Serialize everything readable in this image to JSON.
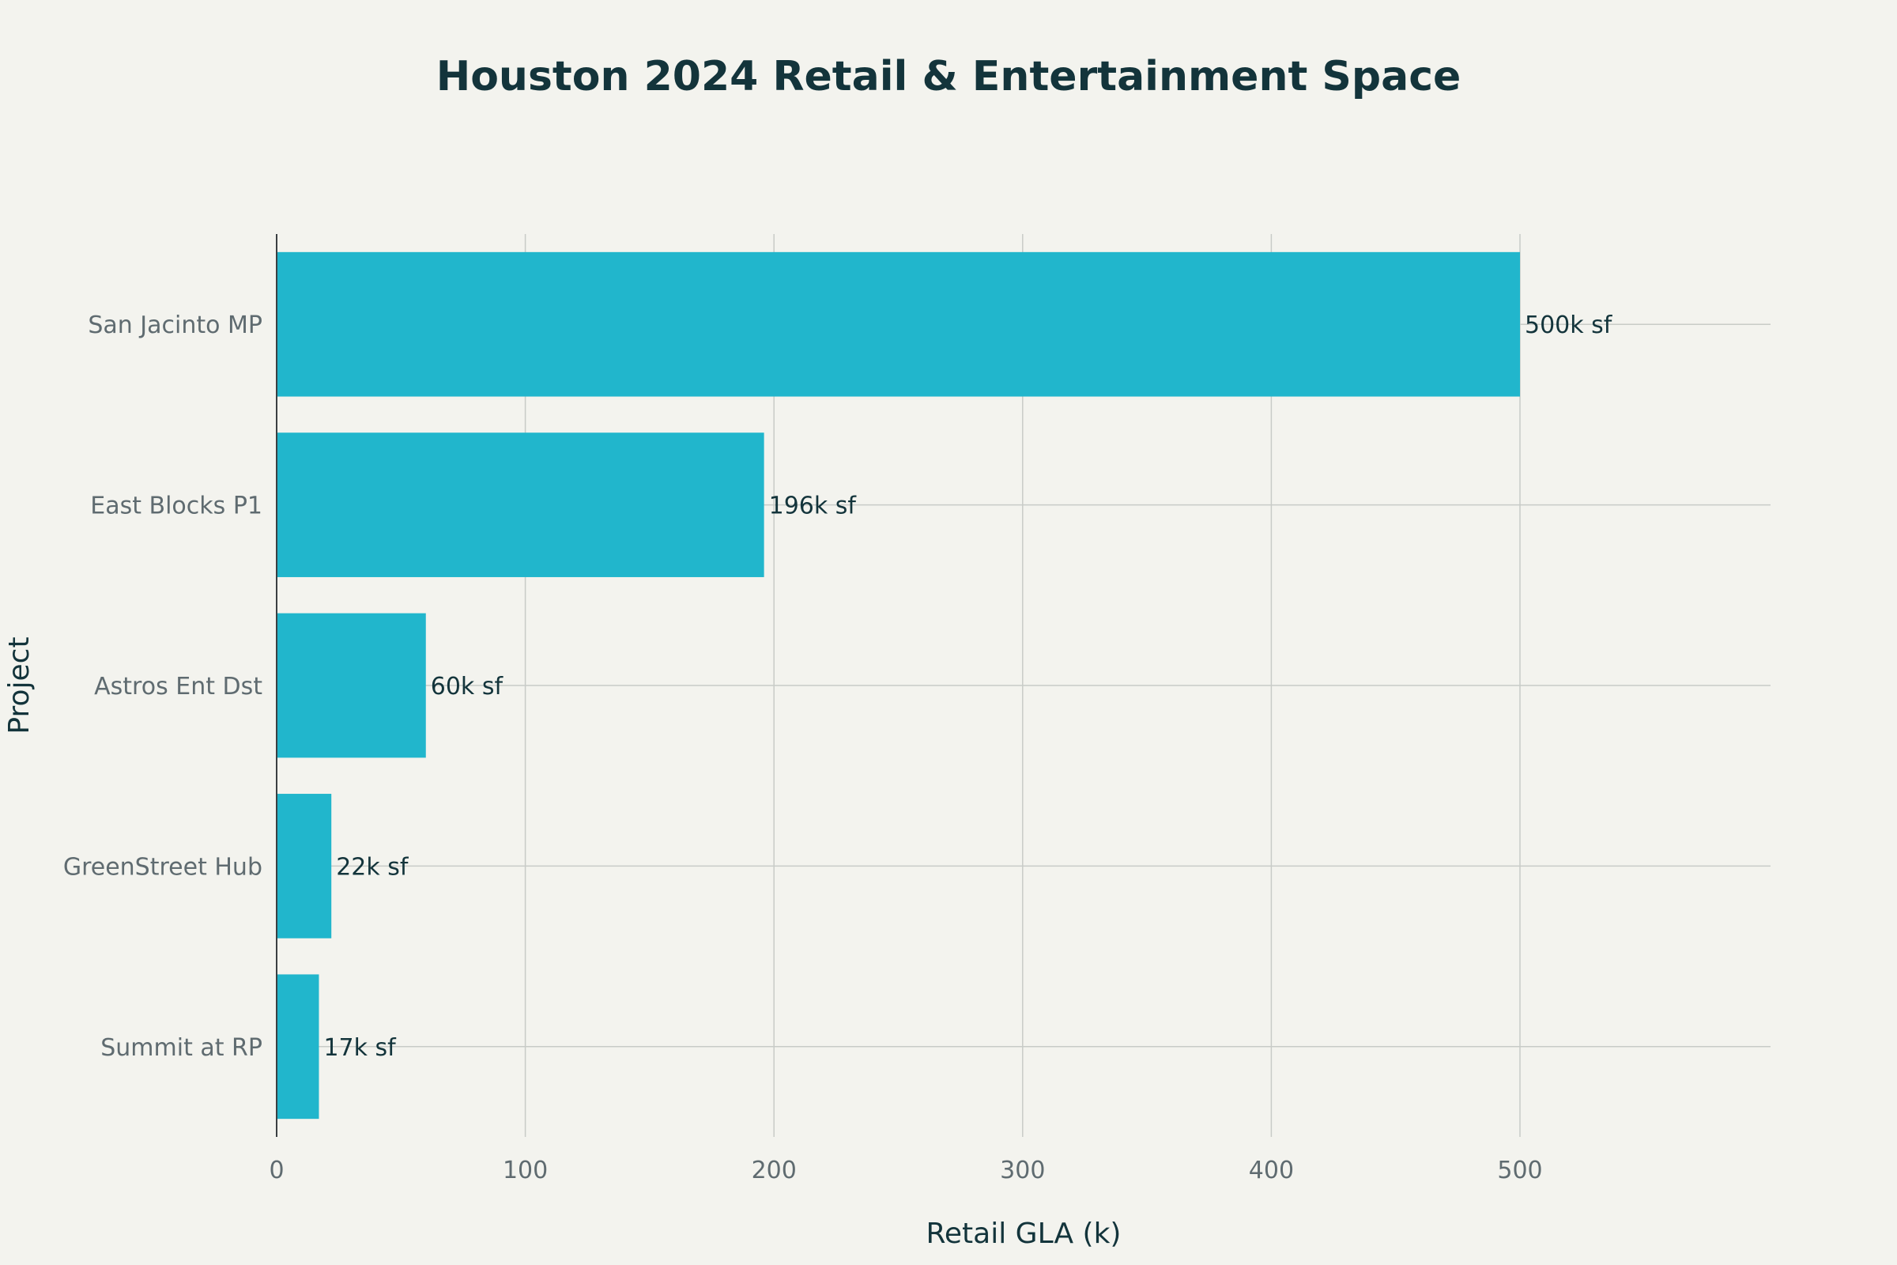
{
  "chart_data": {
    "type": "bar",
    "orientation": "horizontal",
    "title": "Houston 2024 Retail & Entertainment Space",
    "xlabel": "Retail GLA (k)",
    "ylabel": "Project",
    "categories": [
      "San Jacinto MP",
      "East Blocks P1",
      "Astros Ent Dst",
      "GreenStreet Hub",
      "Summit at RP"
    ],
    "values": [
      500,
      196,
      60,
      22,
      17
    ],
    "data_labels": [
      "500k sf",
      "196k sf",
      "60k sf",
      "22k sf",
      "17k sf"
    ],
    "xticks": [
      0,
      100,
      200,
      300,
      400,
      500
    ],
    "xlim": [
      0,
      600
    ],
    "grid": true,
    "legend": "none",
    "bar_color": "#21b6cc",
    "background_color": "#f3f3ee"
  }
}
